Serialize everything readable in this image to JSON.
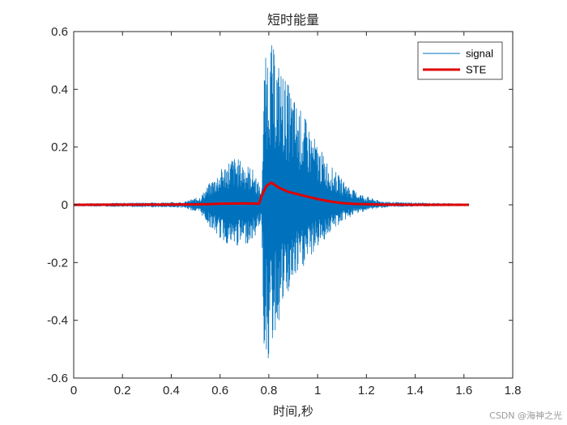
{
  "chart_data": {
    "type": "line",
    "title": "短时能量",
    "xlabel": "时间,秒",
    "ylabel": "",
    "xlim": [
      0,
      1.8
    ],
    "ylim": [
      -0.6,
      0.6
    ],
    "xticks": [
      0,
      0.2,
      0.4,
      0.6,
      0.8,
      1,
      1.2,
      1.4,
      1.6,
      1.8
    ],
    "xtick_labels": [
      "0",
      "0.2",
      "0.4",
      "0.6",
      "0.8",
      "1",
      "1.2",
      "1.4",
      "1.6",
      "1.8"
    ],
    "yticks": [
      -0.6,
      -0.4,
      -0.2,
      0,
      0.2,
      0.4,
      0.6
    ],
    "ytick_labels": [
      "-0.6",
      "-0.4",
      "-0.2",
      "0",
      "0.2",
      "0.4",
      "0.6"
    ],
    "grid": false,
    "legend_position": "top-right",
    "series": [
      {
        "name": "signal",
        "color": "#0072BD",
        "style": "thin-line",
        "envelope": {
          "x": [
            0.0,
            0.45,
            0.52,
            0.56,
            0.6,
            0.65,
            0.7,
            0.74,
            0.77,
            0.78,
            0.8,
            0.82,
            0.86,
            0.9,
            0.95,
            1.0,
            1.05,
            1.1,
            1.15,
            1.2,
            1.25,
            1.3,
            1.4,
            1.5,
            1.62
          ],
          "upper": [
            0.005,
            0.01,
            0.03,
            0.08,
            0.12,
            0.17,
            0.15,
            0.12,
            0.05,
            0.47,
            0.59,
            0.54,
            0.46,
            0.38,
            0.3,
            0.21,
            0.14,
            0.09,
            0.05,
            0.03,
            0.015,
            0.01,
            0.008,
            0.006,
            0.005
          ],
          "lower": [
            -0.005,
            -0.01,
            -0.03,
            -0.08,
            -0.12,
            -0.15,
            -0.14,
            -0.12,
            -0.05,
            -0.5,
            -0.55,
            -0.47,
            -0.36,
            -0.28,
            -0.21,
            -0.15,
            -0.1,
            -0.06,
            -0.035,
            -0.02,
            -0.012,
            -0.008,
            -0.006,
            -0.005,
            -0.005
          ]
        }
      },
      {
        "name": "STE",
        "color": "#E00000",
        "style": "thick-line",
        "x": [
          0.0,
          0.4,
          0.55,
          0.6,
          0.7,
          0.76,
          0.77,
          0.79,
          0.81,
          0.84,
          0.88,
          0.95,
          1.0,
          1.05,
          1.1,
          1.15,
          1.25,
          1.4,
          1.62
        ],
        "y": [
          0.0,
          0.001,
          0.002,
          0.004,
          0.005,
          0.004,
          0.03,
          0.065,
          0.077,
          0.06,
          0.045,
          0.03,
          0.02,
          0.012,
          0.006,
          0.003,
          0.001,
          0.0,
          0.0
        ]
      }
    ]
  },
  "watermark": "CSDN @海神之光"
}
